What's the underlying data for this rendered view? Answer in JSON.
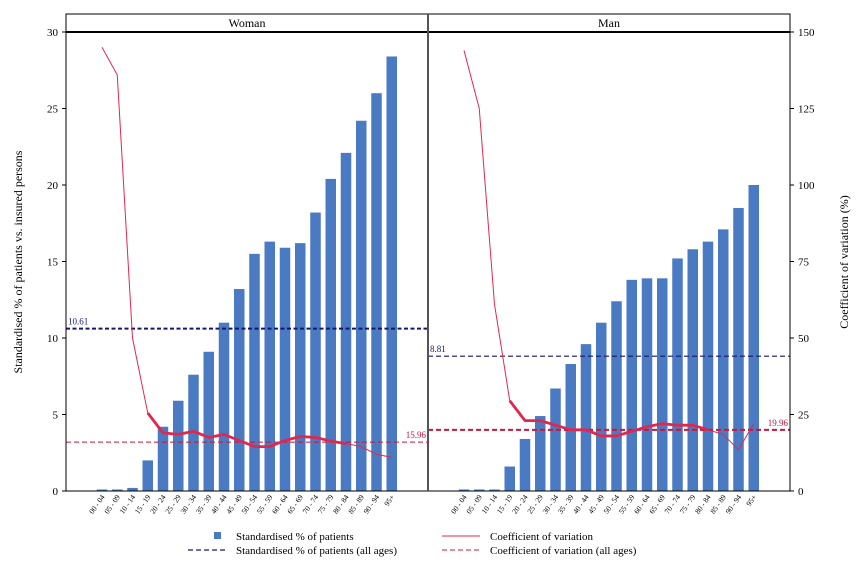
{
  "chart_data": {
    "type": "bar",
    "categories": [
      "00-04",
      "05-09",
      "10-14",
      "15-19",
      "20-24",
      "25-29",
      "30-34",
      "35-39",
      "40-44",
      "45-49",
      "50-54",
      "55-59",
      "60-64",
      "65-69",
      "70-74",
      "75-79",
      "80-84",
      "85-89",
      "90-94",
      "95+"
    ],
    "category_labels": [
      "00 - 04",
      "05 - 09",
      "10 - 14",
      "15 - 19",
      "20 - 24",
      "25 - 29",
      "30 - 34",
      "35 - 39",
      "40 - 44",
      "45 - 49",
      "50 - 54",
      "55 - 59",
      "60 - 64",
      "65 - 69",
      "70 - 74",
      "75 - 79",
      "80 - 84",
      "85 - 89",
      "90 - 94",
      "95+"
    ],
    "y_left_label": "Standardised % of patients vs. insured persons",
    "y_right_label": "Coefficient of variation (%)",
    "y_left_range": [
      0,
      30
    ],
    "y_right_range": [
      0,
      150
    ],
    "y_left_ticks": [
      0,
      5,
      10,
      15,
      20,
      25,
      30
    ],
    "y_right_ticks": [
      0,
      25,
      50,
      75,
      100,
      125,
      150
    ],
    "grid": false,
    "legend_placement": "bottom",
    "panels": [
      {
        "title": "Woman",
        "bars": [
          0.1,
          0.1,
          0.2,
          2.0,
          4.2,
          5.9,
          7.6,
          9.1,
          11.0,
          13.2,
          15.5,
          16.3,
          15.9,
          16.2,
          18.2,
          20.4,
          22.1,
          24.2,
          26.0,
          28.4
        ],
        "cv": [
          145,
          136,
          50,
          25.5,
          19,
          18.5,
          19.5,
          17.5,
          18.5,
          16.5,
          14.5,
          14.5,
          16.5,
          17.8,
          17.5,
          16.3,
          15.5,
          14.5,
          12,
          11
        ],
        "cv_bold_range": [
          3,
          16
        ],
        "mean_pct": 10.61,
        "mean_pct_label": "10.61",
        "mean_cv": 15.96,
        "mean_cv_label": "15.96"
      },
      {
        "title": "Man",
        "bars": [
          0.1,
          0.1,
          0.1,
          1.6,
          3.4,
          4.9,
          6.7,
          8.3,
          9.6,
          11.0,
          12.4,
          13.8,
          13.9,
          13.9,
          15.2,
          15.8,
          16.3,
          17.1,
          18.5,
          20.0
        ],
        "cv": [
          144,
          125,
          61,
          29.5,
          23,
          23,
          21.5,
          20,
          20,
          18,
          18,
          19.5,
          21,
          22,
          21.5,
          21.5,
          20,
          18.5,
          13.5,
          22
        ],
        "cv_bold_range": [
          3,
          16
        ],
        "mean_pct": 8.81,
        "mean_pct_label": "8.81",
        "mean_cv": 19.96,
        "mean_cv_label": "19.96"
      }
    ],
    "legend": [
      {
        "label": "Standardised % of patients",
        "style": "bar"
      },
      {
        "label": "Coefficient of variation",
        "style": "line"
      },
      {
        "label": "Standardised % of patients (all ages)",
        "style": "dashed-navy"
      },
      {
        "label": "Coefficient of variation (all ages)",
        "style": "dashed-red"
      }
    ],
    "colors": {
      "bar": "#4a7ac2",
      "cv_line": "#e0284f",
      "mean_pct_line": "#15176e",
      "mean_cv_line": "#c8173a"
    }
  }
}
